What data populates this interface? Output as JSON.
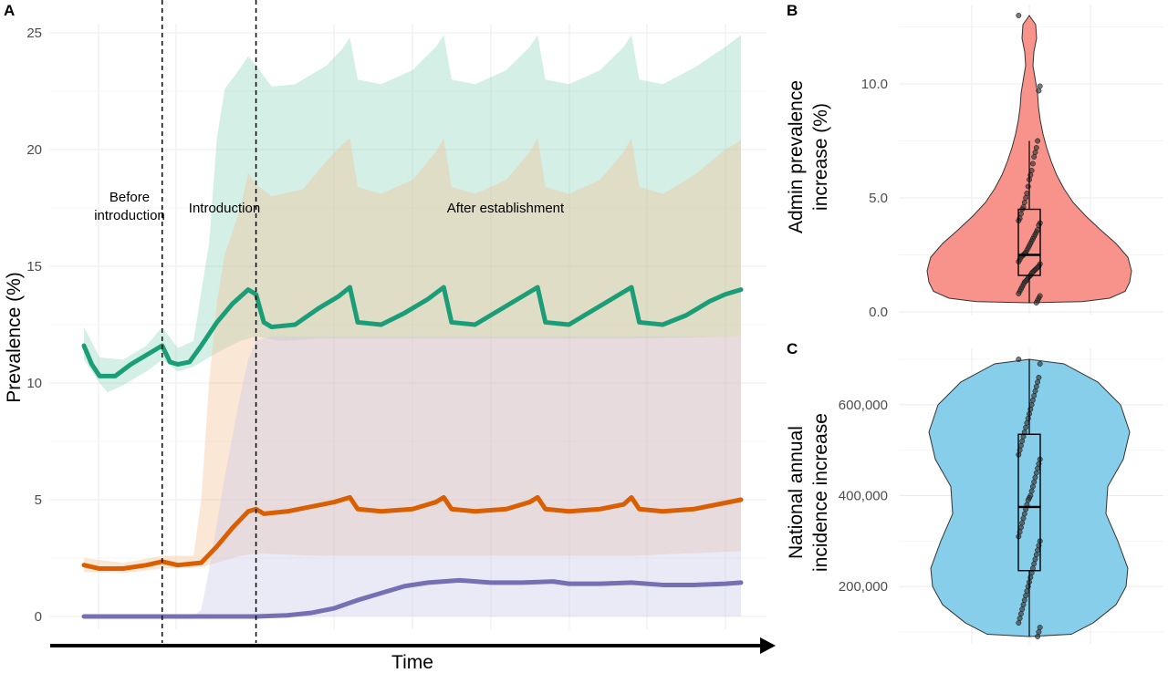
{
  "chart_data": [
    {
      "panel": "A",
      "type": "area",
      "xlabel": "Time",
      "ylabel": "Prevalence (%)",
      "ylim": [
        0,
        25
      ],
      "yticks": [
        "0",
        "5",
        "10",
        "15",
        "20",
        "25"
      ],
      "grid": true,
      "annotations": [
        {
          "label_lines": [
            "Before",
            "introduction"
          ]
        },
        {
          "label_lines": [
            "Introduction"
          ]
        },
        {
          "label_lines": [
            "After establishment"
          ]
        }
      ],
      "phase_boundaries_weeks": [
        20,
        44
      ],
      "week_range": [
        0,
        168
      ],
      "series": [
        {
          "color": "#1b9e77",
          "band_color": "#8fd6bd",
          "points": [
            [
              0,
              11.6
            ],
            [
              2,
              10.8
            ],
            [
              4,
              10.3
            ],
            [
              8,
              10.3
            ],
            [
              12,
              10.8
            ],
            [
              16,
              11.2
            ],
            [
              20,
              11.6
            ],
            [
              22,
              10.9
            ],
            [
              24,
              10.8
            ],
            [
              27,
              10.9
            ],
            [
              30,
              11.6
            ],
            [
              34,
              12.6
            ],
            [
              38,
              13.4
            ],
            [
              42,
              14.0
            ],
            [
              44,
              13.8
            ],
            [
              46,
              12.6
            ],
            [
              48,
              12.4
            ],
            [
              54,
              12.5
            ],
            [
              60,
              13.2
            ],
            [
              65,
              13.7
            ],
            [
              68,
              14.1
            ],
            [
              70,
              12.6
            ],
            [
              76,
              12.5
            ],
            [
              82,
              13.0
            ],
            [
              88,
              13.6
            ],
            [
              92,
              14.1
            ],
            [
              94,
              12.6
            ],
            [
              100,
              12.5
            ],
            [
              106,
              13.1
            ],
            [
              112,
              13.7
            ],
            [
              116,
              14.1
            ],
            [
              118,
              12.6
            ],
            [
              124,
              12.5
            ],
            [
              130,
              13.1
            ],
            [
              136,
              13.7
            ],
            [
              140,
              14.1
            ],
            [
              142,
              12.6
            ],
            [
              148,
              12.5
            ],
            [
              154,
              12.9
            ],
            [
              160,
              13.5
            ],
            [
              164,
              13.8
            ],
            [
              168,
              14.0
            ]
          ],
          "band_upper": [
            [
              0,
              12.4
            ],
            [
              4,
              11.1
            ],
            [
              10,
              11.0
            ],
            [
              16,
              11.6
            ],
            [
              20,
              12.4
            ],
            [
              24,
              11.5
            ],
            [
              28,
              11.8
            ],
            [
              32,
              16
            ],
            [
              34,
              20.5
            ],
            [
              36,
              22.6
            ],
            [
              40,
              23.5
            ],
            [
              42,
              24.0
            ],
            [
              44,
              23.6
            ],
            [
              48,
              22.7
            ],
            [
              54,
              22.8
            ],
            [
              62,
              23.6
            ],
            [
              66,
              24.3
            ],
            [
              68,
              24.8
            ],
            [
              70,
              23.0
            ],
            [
              76,
              22.8
            ],
            [
              84,
              23.4
            ],
            [
              90,
              24.4
            ],
            [
              92,
              24.9
            ],
            [
              94,
              23.0
            ],
            [
              100,
              22.8
            ],
            [
              108,
              23.4
            ],
            [
              114,
              24.4
            ],
            [
              116,
              24.9
            ],
            [
              118,
              23.0
            ],
            [
              124,
              22.8
            ],
            [
              132,
              23.4
            ],
            [
              138,
              24.4
            ],
            [
              140,
              24.9
            ],
            [
              142,
              23.0
            ],
            [
              148,
              22.8
            ],
            [
              156,
              23.5
            ],
            [
              164,
              24.4
            ],
            [
              168,
              24.9
            ]
          ],
          "band_lower": [
            [
              0,
              11.0
            ],
            [
              4,
              10.0
            ],
            [
              6,
              9.6
            ],
            [
              10,
              9.9
            ],
            [
              16,
              10.5
            ],
            [
              20,
              11.0
            ],
            [
              24,
              10.5
            ],
            [
              28,
              10.7
            ],
            [
              34,
              11.3
            ],
            [
              40,
              11.8
            ],
            [
              44,
              12.0
            ],
            [
              50,
              11.8
            ],
            [
              60,
              11.9
            ],
            [
              80,
              11.9
            ],
            [
              100,
              11.9
            ],
            [
              120,
              11.9
            ],
            [
              140,
              11.9
            ],
            [
              168,
              12.0
            ]
          ]
        },
        {
          "color": "#d95f02",
          "band_color": "#f4bf93",
          "points": [
            [
              0,
              2.2
            ],
            [
              4,
              2.05
            ],
            [
              10,
              2.05
            ],
            [
              16,
              2.2
            ],
            [
              20,
              2.35
            ],
            [
              24,
              2.2
            ],
            [
              30,
              2.3
            ],
            [
              34,
              3.0
            ],
            [
              38,
              3.8
            ],
            [
              42,
              4.5
            ],
            [
              44,
              4.6
            ],
            [
              46,
              4.4
            ],
            [
              52,
              4.5
            ],
            [
              58,
              4.7
            ],
            [
              64,
              4.9
            ],
            [
              68,
              5.1
            ],
            [
              70,
              4.6
            ],
            [
              76,
              4.5
            ],
            [
              84,
              4.6
            ],
            [
              90,
              4.9
            ],
            [
              92,
              5.1
            ],
            [
              94,
              4.6
            ],
            [
              100,
              4.5
            ],
            [
              108,
              4.6
            ],
            [
              114,
              4.9
            ],
            [
              116,
              5.1
            ],
            [
              118,
              4.6
            ],
            [
              124,
              4.5
            ],
            [
              132,
              4.6
            ],
            [
              138,
              4.8
            ],
            [
              140,
              5.1
            ],
            [
              142,
              4.6
            ],
            [
              148,
              4.5
            ],
            [
              156,
              4.6
            ],
            [
              162,
              4.8
            ],
            [
              168,
              5.0
            ]
          ],
          "band_upper": [
            [
              0,
              2.5
            ],
            [
              10,
              2.3
            ],
            [
              20,
              2.6
            ],
            [
              28,
              2.6
            ],
            [
              30,
              5
            ],
            [
              32,
              10
            ],
            [
              34,
              13.5
            ],
            [
              36,
              15.5
            ],
            [
              40,
              17.5
            ],
            [
              42,
              19.0
            ],
            [
              44,
              18.5
            ],
            [
              48,
              18.0
            ],
            [
              56,
              18.3
            ],
            [
              62,
              19.5
            ],
            [
              66,
              20.2
            ],
            [
              68,
              20.5
            ],
            [
              70,
              18.4
            ],
            [
              76,
              18.1
            ],
            [
              84,
              18.7
            ],
            [
              90,
              19.9
            ],
            [
              92,
              20.5
            ],
            [
              94,
              18.4
            ],
            [
              100,
              18.1
            ],
            [
              108,
              18.7
            ],
            [
              114,
              19.9
            ],
            [
              116,
              20.5
            ],
            [
              118,
              18.4
            ],
            [
              124,
              18.1
            ],
            [
              132,
              18.7
            ],
            [
              138,
              19.9
            ],
            [
              140,
              20.5
            ],
            [
              142,
              18.4
            ],
            [
              148,
              18.1
            ],
            [
              156,
              18.9
            ],
            [
              164,
              20.0
            ],
            [
              168,
              20.4
            ]
          ],
          "band_lower": [
            [
              0,
              1.9
            ],
            [
              10,
              1.85
            ],
            [
              20,
              2.05
            ],
            [
              30,
              2.1
            ],
            [
              36,
              2.4
            ],
            [
              40,
              2.6
            ],
            [
              44,
              2.7
            ],
            [
              60,
              2.6
            ],
            [
              80,
              2.6
            ],
            [
              100,
              2.6
            ],
            [
              120,
              2.6
            ],
            [
              140,
              2.6
            ],
            [
              168,
              2.8
            ]
          ]
        },
        {
          "color": "#7570b3",
          "band_color": "#c9c7ea",
          "points": [
            [
              0,
              0
            ],
            [
              20,
              0
            ],
            [
              44,
              0
            ],
            [
              52,
              0.05
            ],
            [
              58,
              0.15
            ],
            [
              64,
              0.35
            ],
            [
              70,
              0.7
            ],
            [
              76,
              1.0
            ],
            [
              82,
              1.3
            ],
            [
              88,
              1.45
            ],
            [
              96,
              1.55
            ],
            [
              104,
              1.45
            ],
            [
              112,
              1.45
            ],
            [
              120,
              1.5
            ],
            [
              124,
              1.4
            ],
            [
              132,
              1.4
            ],
            [
              140,
              1.45
            ],
            [
              148,
              1.35
            ],
            [
              156,
              1.35
            ],
            [
              164,
              1.4
            ],
            [
              168,
              1.45
            ]
          ],
          "band_upper": [
            [
              0,
              0
            ],
            [
              28,
              0
            ],
            [
              30,
              0.3
            ],
            [
              32,
              2.0
            ],
            [
              36,
              6.0
            ],
            [
              40,
              9.5
            ],
            [
              42,
              11.0
            ],
            [
              44,
              11.8
            ],
            [
              48,
              12.0
            ],
            [
              60,
              12.0
            ],
            [
              80,
              12.0
            ],
            [
              100,
              12.0
            ],
            [
              120,
              12.0
            ],
            [
              140,
              12.0
            ],
            [
              168,
              12.0
            ]
          ],
          "band_lower": [
            [
              0,
              0
            ],
            [
              168,
              0
            ]
          ]
        }
      ]
    },
    {
      "panel": "B",
      "type": "violin",
      "ylabel_lines": [
        "Admin prevalence",
        "increase (%)"
      ],
      "ylim": [
        0.4,
        13.0
      ],
      "yticks": [
        "0.0",
        "5.0",
        "10.0"
      ],
      "ytick_values": [
        0,
        5,
        10
      ],
      "fill": "#f8938b",
      "box": {
        "q1": 1.6,
        "median": 2.5,
        "q3": 4.5,
        "whisker_low": 0.4,
        "whisker_high": 7.5
      },
      "points": [
        13.0,
        9.9,
        9.7,
        7.5,
        7.2,
        7.0,
        6.8,
        6.5,
        6.2,
        6.0,
        5.8,
        5.5,
        5.2,
        5.0,
        4.8,
        4.6,
        4.5,
        4.3,
        4.1,
        4.0,
        3.9,
        3.8,
        3.6,
        3.5,
        3.4,
        3.3,
        3.2,
        3.1,
        3.0,
        2.9,
        2.8,
        2.7,
        2.6,
        2.55,
        2.5,
        2.45,
        2.4,
        2.3,
        2.2,
        2.1,
        2.0,
        1.95,
        1.9,
        1.85,
        1.8,
        1.75,
        1.7,
        1.6,
        1.55,
        1.5,
        1.4,
        1.35,
        1.3,
        1.2,
        1.1,
        1.0,
        0.9,
        0.8,
        0.7,
        0.6,
        0.5,
        0.4
      ]
    },
    {
      "panel": "C",
      "type": "violin",
      "ylabel_lines": [
        "National annual",
        "incidence increase"
      ],
      "ylim": [
        90000,
        700000
      ],
      "yticks": [
        "200,000",
        "400,000",
        "600,000"
      ],
      "ytick_values": [
        200000,
        400000,
        600000
      ],
      "fill": "#87ceeb",
      "box": {
        "q1": 235000,
        "median": 375000,
        "q3": 535000,
        "whisker_low": 90000,
        "whisker_high": 700000
      },
      "points": [
        700000,
        690000,
        660000,
        650000,
        640000,
        630000,
        620000,
        610000,
        600000,
        590000,
        580000,
        570000,
        560000,
        550000,
        540000,
        530000,
        520000,
        510000,
        500000,
        490000,
        480000,
        470000,
        460000,
        450000,
        440000,
        430000,
        420000,
        410000,
        400000,
        395000,
        390000,
        380000,
        370000,
        360000,
        350000,
        340000,
        330000,
        320000,
        310000,
        300000,
        290000,
        280000,
        270000,
        260000,
        250000,
        240000,
        230000,
        220000,
        210000,
        200000,
        190000,
        180000,
        170000,
        160000,
        150000,
        140000,
        130000,
        120000,
        110000,
        100000,
        90000
      ]
    }
  ]
}
